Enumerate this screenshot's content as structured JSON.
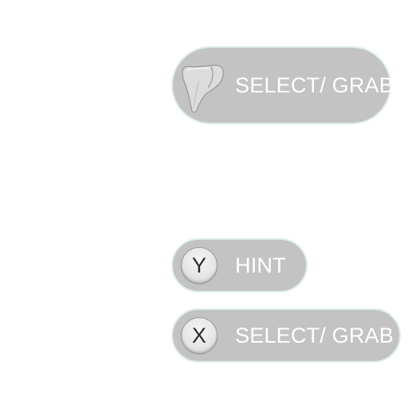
{
  "prompts": {
    "trigger": {
      "icon": "trigger-button-icon",
      "label": "SELECT/ GRAB"
    },
    "hint": {
      "button_glyph": "Y",
      "label": "HINT"
    },
    "select": {
      "button_glyph": "X",
      "label": "SELECT/ GRAB"
    }
  },
  "colors": {
    "pill_fill": "#c3c3c3",
    "pill_border": "#ddeee6",
    "label_text": "#ffffff",
    "button_glyph": "#2c2c2c"
  }
}
